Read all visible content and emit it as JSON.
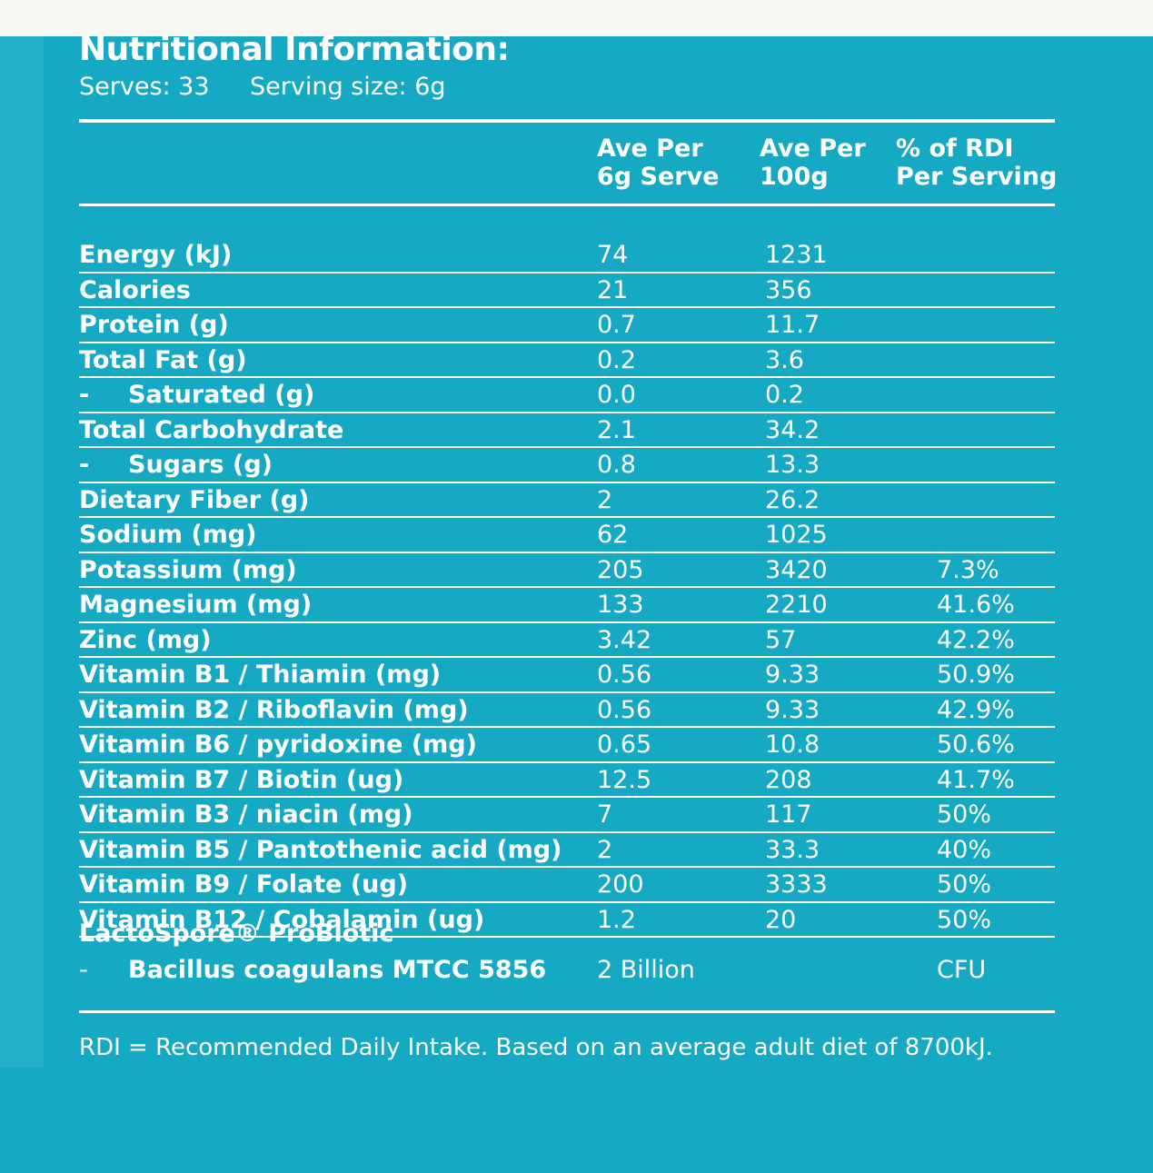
{
  "header": {
    "title": "Nutritional Information:",
    "serves": "Serves: 33",
    "serving_size": "Serving size: 6g"
  },
  "columns": {
    "per_serve": [
      "Ave Per",
      "6g Serve"
    ],
    "per_100g": [
      "Ave Per",
      "100g"
    ],
    "rdi": [
      "% of RDI",
      "Per Serving"
    ]
  },
  "rows": [
    {
      "label": "Energy (kJ)",
      "per_serve": "74",
      "per_100g": "1231",
      "rdi": ""
    },
    {
      "label": "Calories",
      "per_serve": "21",
      "per_100g": "356",
      "rdi": ""
    },
    {
      "label": "Protein (g)",
      "per_serve": "0.7",
      "per_100g": "11.7",
      "rdi": ""
    },
    {
      "label": "Total Fat (g)",
      "per_serve": "0.2",
      "per_100g": "3.6",
      "rdi": ""
    },
    {
      "label": "Saturated (g)",
      "indent": true,
      "per_serve": "0.0",
      "per_100g": "0.2",
      "rdi": ""
    },
    {
      "label": "Total Carbohydrate",
      "per_serve": "2.1",
      "per_100g": "34.2",
      "rdi": ""
    },
    {
      "label": "Sugars (g)",
      "indent": true,
      "per_serve": "0.8",
      "per_100g": "13.3",
      "rdi": ""
    },
    {
      "label": "Dietary Fiber (g)",
      "per_serve": "2",
      "per_100g": "26.2",
      "rdi": ""
    },
    {
      "label": "Sodium (mg)",
      "per_serve": "62",
      "per_100g": "1025",
      "rdi": ""
    },
    {
      "label": "Potassium (mg)",
      "per_serve": "205",
      "per_100g": "3420",
      "rdi": "7.3%"
    },
    {
      "label": "Magnesium (mg)",
      "per_serve": "133",
      "per_100g": "2210",
      "rdi": "41.6%"
    },
    {
      "label": "Zinc (mg)",
      "per_serve": "3.42",
      "per_100g": "57",
      "rdi": "42.2%"
    },
    {
      "label": "Vitamin B1 / Thiamin (mg)",
      "per_serve": "0.56",
      "per_100g": "9.33",
      "rdi": "50.9%"
    },
    {
      "label": "Vitamin B2 / Riboflavin (mg)",
      "per_serve": "0.56",
      "per_100g": "9.33",
      "rdi": "42.9%"
    },
    {
      "label": "Vitamin B6 / pyridoxine (mg)",
      "per_serve": "0.65",
      "per_100g": "10.8",
      "rdi": "50.6%"
    },
    {
      "label": "Vitamin B7 / Biotin (ug)",
      "per_serve": "12.5",
      "per_100g": "208",
      "rdi": "41.7%"
    },
    {
      "label": "Vitamin B3 / niacin (mg)",
      "per_serve": "7",
      "per_100g": "117",
      "rdi": "50%"
    },
    {
      "label": "Vitamin B5 / Pantothenic acid (mg)",
      "per_serve": "2",
      "per_100g": "33.3",
      "rdi": "40%"
    },
    {
      "label": "Vitamin B9 / Folate (ug)",
      "per_serve": "200",
      "per_100g": "3333",
      "rdi": "50%"
    },
    {
      "label": "Vitamin B12 / Cobalamin (ug)",
      "per_serve": "1.2",
      "per_100g": "20",
      "rdi": "50%"
    }
  ],
  "probiotic": {
    "title": "LactoSpore® ProBiotic",
    "strain": "Bacillus coagulans MTCC 5856",
    "amount": "2 Billion",
    "unit": "CFU"
  },
  "footnote": "RDI = Recommended Daily Intake. Based on an average adult diet of 8700kJ.",
  "colors": {
    "panel": "#16a9c3",
    "page": "#f7f6f2",
    "text": "#ffffff"
  }
}
